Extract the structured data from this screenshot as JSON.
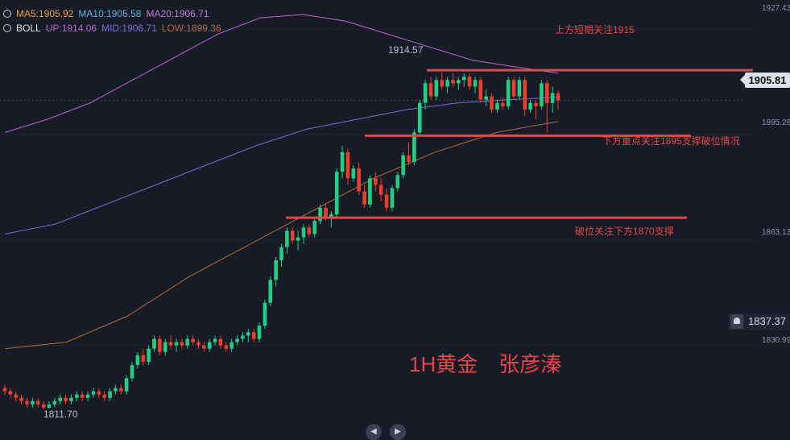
{
  "legend": {
    "ma": {
      "label": "MA5:1905.92",
      "label2": "MA10:1905.58",
      "label3": "MA20:1906.71"
    },
    "boll": {
      "name": "BOLL",
      "up": "UP:1914.06",
      "mid": "MID:1906.71",
      "low": "LOW:1899.36"
    },
    "colors": {
      "ma5": "#e8a33c",
      "ma10": "#4fb7d8",
      "ma20": "#c07ad6",
      "boll_up": "#b868cf",
      "boll_mid": "#6b74d8",
      "boll_low": "#b56a3d"
    }
  },
  "axis_ticks": [
    "1927.43",
    "1895.28",
    "1863.13",
    "1830.99"
  ],
  "current_price": "1905.81",
  "alert_price": "1837.37",
  "hi_label": "1914.57",
  "lo_label": "1811.70",
  "annotations": {
    "a1": "上方短期关注1915",
    "a2": "下方重点关注1895支撑破位情况",
    "a3": "破位关注下方1870支撑"
  },
  "watermark": "1H黄金　张彦溱",
  "chart_data": {
    "type": "candlestick",
    "symbol_timeframe": "1H",
    "ylim": [
      1810,
      1932
    ],
    "yticks": [
      1927.43,
      1895.28,
      1863.13,
      1830.99
    ],
    "levels": [
      1915,
      1895,
      1870
    ],
    "last_price": 1905.81,
    "alert": 1837.37,
    "high_marker": 1914.57,
    "low_marker": 1811.7,
    "ohlc": [
      [
        1818,
        1819,
        1816,
        1817
      ],
      [
        1817,
        1818,
        1815,
        1816
      ],
      [
        1816,
        1817,
        1814,
        1815
      ],
      [
        1815,
        1816,
        1813,
        1814
      ],
      [
        1814,
        1815,
        1812,
        1813
      ],
      [
        1813,
        1815,
        1812,
        1814
      ],
      [
        1814,
        1815,
        1812,
        1813
      ],
      [
        1813,
        1814,
        1811.7,
        1812
      ],
      [
        1812,
        1814,
        1811.7,
        1813
      ],
      [
        1813,
        1815,
        1812,
        1814
      ],
      [
        1814,
        1816,
        1813,
        1815
      ],
      [
        1815,
        1816,
        1813,
        1814
      ],
      [
        1814,
        1816,
        1813,
        1815
      ],
      [
        1815,
        1817,
        1814,
        1816
      ],
      [
        1816,
        1817,
        1814,
        1815
      ],
      [
        1815,
        1817,
        1814,
        1816
      ],
      [
        1816,
        1818,
        1815,
        1817
      ],
      [
        1817,
        1818,
        1815,
        1816
      ],
      [
        1816,
        1817,
        1814,
        1815
      ],
      [
        1815,
        1818,
        1814,
        1817
      ],
      [
        1817,
        1819,
        1816,
        1818
      ],
      [
        1818,
        1819,
        1816,
        1817
      ],
      [
        1817,
        1822,
        1816,
        1821
      ],
      [
        1821,
        1826,
        1820,
        1825
      ],
      [
        1825,
        1829,
        1824,
        1828
      ],
      [
        1828,
        1830,
        1825,
        1826
      ],
      [
        1826,
        1831,
        1825,
        1830
      ],
      [
        1830,
        1834,
        1829,
        1833
      ],
      [
        1833,
        1834,
        1828,
        1829
      ],
      [
        1829,
        1833,
        1828,
        1832
      ],
      [
        1832,
        1834,
        1830,
        1831
      ],
      [
        1831,
        1833,
        1829,
        1832
      ],
      [
        1832,
        1833,
        1830,
        1831
      ],
      [
        1831,
        1834,
        1830,
        1833
      ],
      [
        1833,
        1834,
        1831,
        1832
      ],
      [
        1832,
        1833,
        1830,
        1831
      ],
      [
        1831,
        1832,
        1829,
        1830
      ],
      [
        1830,
        1833,
        1829,
        1832
      ],
      [
        1832,
        1834,
        1831,
        1833
      ],
      [
        1833,
        1834,
        1830,
        1831
      ],
      [
        1831,
        1832,
        1829,
        1830
      ],
      [
        1830,
        1833,
        1829,
        1832
      ],
      [
        1832,
        1834,
        1831,
        1833
      ],
      [
        1833,
        1835,
        1832,
        1834
      ],
      [
        1834,
        1836,
        1832,
        1835
      ],
      [
        1835,
        1836,
        1832,
        1833
      ],
      [
        1833,
        1838,
        1832,
        1837
      ],
      [
        1837,
        1845,
        1836,
        1844
      ],
      [
        1844,
        1852,
        1843,
        1851
      ],
      [
        1851,
        1858,
        1849,
        1857
      ],
      [
        1857,
        1862,
        1855,
        1861
      ],
      [
        1861,
        1867,
        1859,
        1866
      ],
      [
        1866,
        1867,
        1862,
        1863
      ],
      [
        1863,
        1866,
        1860,
        1864
      ],
      [
        1864,
        1868,
        1862,
        1867
      ],
      [
        1867,
        1868,
        1864,
        1865
      ],
      [
        1865,
        1870,
        1864,
        1869
      ],
      [
        1869,
        1874,
        1868,
        1873
      ],
      [
        1873,
        1874,
        1869,
        1870
      ],
      [
        1870,
        1872,
        1867,
        1871
      ],
      [
        1871,
        1885,
        1870,
        1884
      ],
      [
        1884,
        1892,
        1882,
        1890
      ],
      [
        1890,
        1891,
        1880,
        1882
      ],
      [
        1882,
        1886,
        1881,
        1885
      ],
      [
        1885,
        1887,
        1877,
        1878
      ],
      [
        1878,
        1880,
        1873,
        1874
      ],
      [
        1874,
        1883,
        1873,
        1882
      ],
      [
        1882,
        1884,
        1878,
        1880
      ],
      [
        1880,
        1882,
        1875,
        1877
      ],
      [
        1877,
        1879,
        1872,
        1873
      ],
      [
        1873,
        1880,
        1872,
        1879
      ],
      [
        1879,
        1884,
        1878,
        1883
      ],
      [
        1883,
        1890,
        1882,
        1889
      ],
      [
        1889,
        1893,
        1886,
        1887
      ],
      [
        1887,
        1897,
        1886,
        1896
      ],
      [
        1896,
        1906,
        1895,
        1905
      ],
      [
        1905,
        1912,
        1903,
        1911
      ],
      [
        1911,
        1913,
        1906,
        1907
      ],
      [
        1907,
        1913,
        1906,
        1912
      ],
      [
        1912,
        1914.57,
        1909,
        1910
      ],
      [
        1910,
        1913,
        1908,
        1912
      ],
      [
        1912,
        1914,
        1910,
        1911
      ],
      [
        1911,
        1913,
        1909,
        1912
      ],
      [
        1912,
        1914,
        1910,
        1913
      ],
      [
        1913,
        1914,
        1909,
        1910
      ],
      [
        1910,
        1913,
        1908,
        1912
      ],
      [
        1912,
        1913,
        1905,
        1906
      ],
      [
        1906,
        1909,
        1904,
        1907
      ],
      [
        1907,
        1908,
        1902,
        1903
      ],
      [
        1903,
        1906,
        1902,
        1905
      ],
      [
        1905,
        1907,
        1903,
        1904
      ],
      [
        1904,
        1913,
        1903,
        1912
      ],
      [
        1912,
        1913,
        1906,
        1907
      ],
      [
        1907,
        1913,
        1906,
        1912
      ],
      [
        1912,
        1913,
        1901,
        1903
      ],
      [
        1903,
        1906,
        1902,
        1905
      ],
      [
        1905,
        1906,
        1900,
        1904
      ],
      [
        1904,
        1912,
        1903,
        1911
      ],
      [
        1911,
        1912,
        1896,
        1905
      ],
      [
        1905,
        1910,
        1902,
        1908
      ],
      [
        1908,
        1909,
        1903,
        1905.81
      ]
    ],
    "series": [
      {
        "values": [
          1896,
          1900,
          1905,
          1912,
          1919,
          1926,
          1931,
          1932,
          1930,
          1926,
          1922,
          1918,
          1916,
          1914.06
        ]
      },
      {
        "values": [
          1865,
          1868,
          1874,
          1880,
          1886,
          1892,
          1897,
          1900,
          1903,
          1905,
          1906,
          1906.71
        ]
      },
      {
        "values": [
          1830,
          1832,
          1840,
          1852,
          1862,
          1872,
          1882,
          1890,
          1896,
          1899.36
        ]
      }
    ]
  }
}
